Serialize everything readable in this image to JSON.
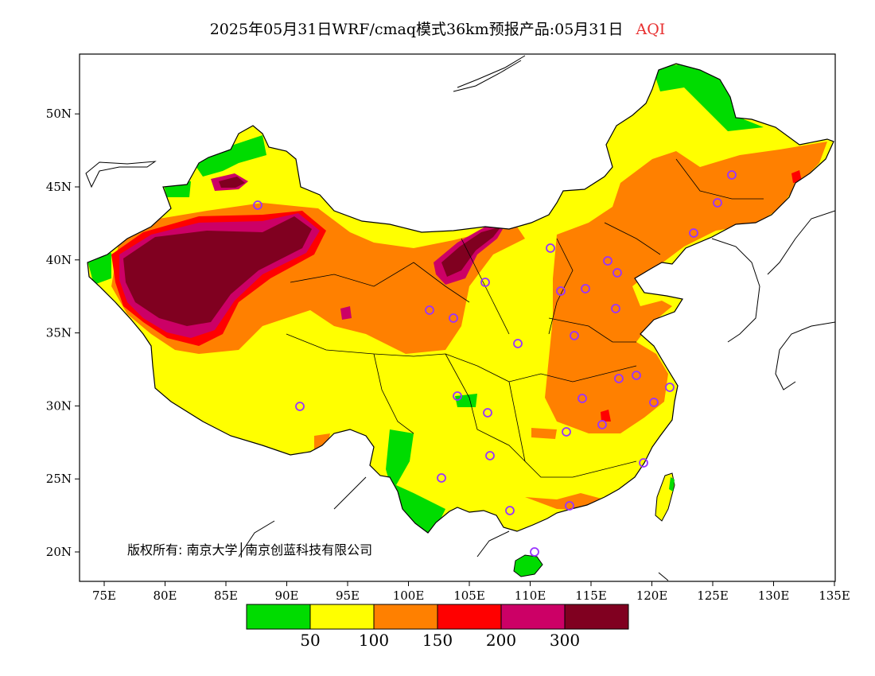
{
  "title": {
    "main": "2025年05月31日WRF/cmaq模式36km预报产品:05月31日",
    "variable": "AQI",
    "variable_color": "#e83030"
  },
  "axes": {
    "lon_ticks": [
      "75E",
      "80E",
      "85E",
      "90E",
      "95E",
      "100E",
      "105E",
      "110E",
      "115E",
      "120E",
      "125E",
      "130E",
      "135E"
    ],
    "lat_ticks": [
      "20N",
      "25N",
      "30N",
      "35N",
      "40N",
      "45N",
      "50N"
    ]
  },
  "copyright": "版权所有: 南京大学│南京创蓝科技有限公司",
  "legend": {
    "colors": [
      "#00dc00",
      "#ffff00",
      "#ff8000",
      "#ff0000",
      "#cc0066",
      "#800020"
    ],
    "labels": [
      "50",
      "100",
      "150",
      "200",
      "300"
    ]
  },
  "colors": {
    "good": "#00dc00",
    "moderate": "#ffff00",
    "sensitive": "#ff8000",
    "unhealthy": "#ff0000",
    "very_unhealthy": "#cc0066",
    "hazardous": "#800020",
    "station": "#9933ff"
  }
}
